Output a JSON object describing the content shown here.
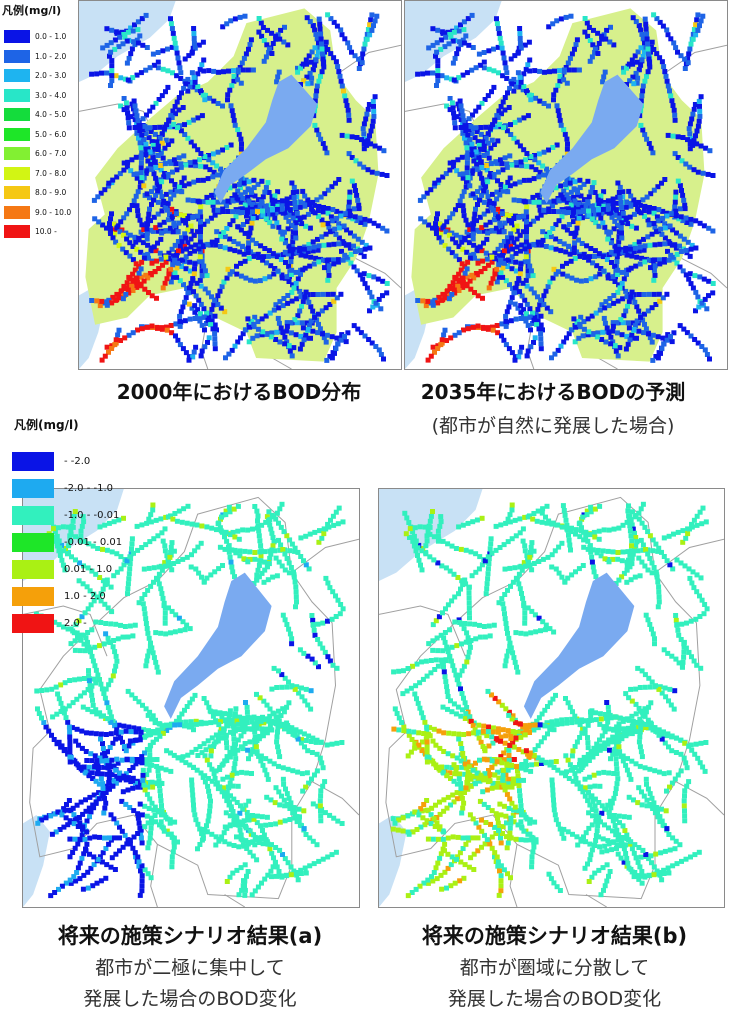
{
  "legend1": {
    "title": "凡例(mg/l)",
    "items": [
      {
        "label": "0.0 - 1.0",
        "color": "#0a14e6"
      },
      {
        "label": "1.0 - 2.0",
        "color": "#1e64e6"
      },
      {
        "label": "2.0 - 3.0",
        "color": "#1eb4f0"
      },
      {
        "label": "3.0 - 4.0",
        "color": "#28e6c8"
      },
      {
        "label": "4.0 - 5.0",
        "color": "#14dc3c"
      },
      {
        "label": "5.0 - 6.0",
        "color": "#1ee628"
      },
      {
        "label": "6.0 - 7.0",
        "color": "#82f032"
      },
      {
        "label": "7.0 - 8.0",
        "color": "#d2f514"
      },
      {
        "label": "8.0 - 9.0",
        "color": "#f5c814"
      },
      {
        "label": "9.0 - 10.0",
        "color": "#f57814"
      },
      {
        "label": "10.0 -",
        "color": "#f01414"
      }
    ]
  },
  "legend2": {
    "title": "凡例(mg/l)",
    "items": [
      {
        "label": "- -2.0",
        "color": "#0a14e6"
      },
      {
        "label": "-2.0 - -1.0",
        "color": "#1eaaf0"
      },
      {
        "label": "-1.0 - -0.01",
        "color": "#32f0be"
      },
      {
        "label": "-0.01 - 0.01",
        "color": "#1ee628"
      },
      {
        "label": "0.01 - 1.0",
        "color": "#aaf014"
      },
      {
        "label": "1.0 - 2.0",
        "color": "#f5a00a"
      },
      {
        "label": "2.0 -",
        "color": "#f01414"
      }
    ]
  },
  "captions": {
    "map1": {
      "main": "2000年におけるBOD分布"
    },
    "map2": {
      "main": "2035年におけるBODの予測",
      "sub": "(都市が自然に発展した場合)"
    },
    "map3": {
      "main": "将来の施策シナリオ結果(a)",
      "sub1": "都市が二極に集中して",
      "sub2": "発展した場合のBOD変化"
    },
    "map4": {
      "main": "将来の施策シナリオ結果(b)",
      "sub1": "都市が圏域に分散して",
      "sub2": "発展した場合のBOD変化"
    }
  },
  "colors": {
    "basin_fill": "#d7f08c",
    "lake": "#7aaaf0",
    "sea": "#c8e1f5",
    "boundary": "#a0a0a0"
  }
}
